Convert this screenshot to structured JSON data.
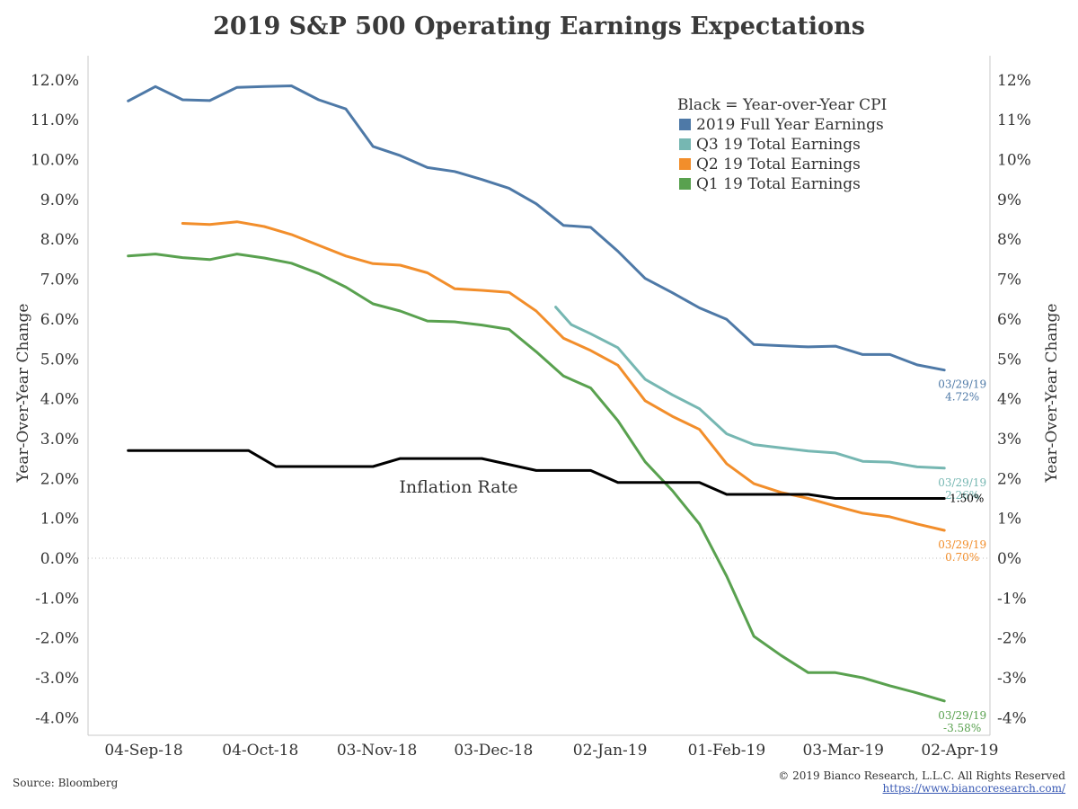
{
  "chart_data": {
    "type": "line",
    "title": "2019 S&P 500 Operating Earnings Expectations",
    "ylabel": "Year-Over-Year Change",
    "y2label": "Year-Over-Year Change",
    "ylim": [
      -4.5,
      12.6
    ],
    "grid": false,
    "legend_position": "top-right",
    "legend_header": "Black = Year-over-Year CPI",
    "x_ticks": [
      {
        "label": "04-Sep-18",
        "value": "2018-09-04"
      },
      {
        "label": "04-Oct-18",
        "value": "2018-10-04"
      },
      {
        "label": "03-Nov-18",
        "value": "2018-11-03"
      },
      {
        "label": "03-Dec-18",
        "value": "2018-12-03"
      },
      {
        "label": "02-Jan-19",
        "value": "2019-01-02"
      },
      {
        "label": "01-Feb-19",
        "value": "2019-02-01"
      },
      {
        "label": "03-Mar-19",
        "value": "2019-03-03"
      },
      {
        "label": "02-Apr-19",
        "value": "2019-04-02"
      }
    ],
    "y_ticks_left": [
      "12.0%",
      "11.0%",
      "10.0%",
      "9.0%",
      "8.0%",
      "7.0%",
      "6.0%",
      "5.0%",
      "4.0%",
      "3.0%",
      "2.0%",
      "1.0%",
      "0.0%",
      "-1.0%",
      "-2.0%",
      "-3.0%",
      "-4.0%"
    ],
    "y_ticks_right": [
      "12%",
      "11%",
      "10%",
      "9%",
      "8%",
      "7%",
      "6%",
      "5%",
      "4%",
      "3%",
      "2%",
      "1%",
      "0%",
      "-1%",
      "-2%",
      "-3%",
      "-4%"
    ],
    "y_tick_values": [
      12,
      11,
      10,
      9,
      8,
      7,
      6,
      5,
      4,
      3,
      2,
      1,
      0,
      -1,
      -2,
      -3,
      -4
    ],
    "series": [
      {
        "name": "2019 Full Year Earnings",
        "color": "#4e79a7",
        "end_label": [
          "03/29/19",
          "4.72%"
        ],
        "points": [
          [
            "2018-08-31",
            11.47
          ],
          [
            "2018-09-07",
            11.83
          ],
          [
            "2018-09-14",
            11.5
          ],
          [
            "2018-09-21",
            11.48
          ],
          [
            "2018-09-28",
            11.81
          ],
          [
            "2018-10-05",
            11.83
          ],
          [
            "2018-10-12",
            11.85
          ],
          [
            "2018-10-19",
            11.5
          ],
          [
            "2018-10-26",
            11.27
          ],
          [
            "2018-11-02",
            10.33
          ],
          [
            "2018-11-09",
            10.1
          ],
          [
            "2018-11-16",
            9.8
          ],
          [
            "2018-11-23",
            9.7
          ],
          [
            "2018-11-30",
            9.5
          ],
          [
            "2018-12-07",
            9.28
          ],
          [
            "2018-12-14",
            8.89
          ],
          [
            "2018-12-21",
            8.35
          ],
          [
            "2018-12-28",
            8.3
          ],
          [
            "2019-01-04",
            7.7
          ],
          [
            "2019-01-11",
            7.02
          ],
          [
            "2019-01-18",
            6.66
          ],
          [
            "2019-01-25",
            6.28
          ],
          [
            "2019-02-01",
            5.99
          ],
          [
            "2019-02-08",
            5.36
          ],
          [
            "2019-02-15",
            5.33
          ],
          [
            "2019-02-22",
            5.3
          ],
          [
            "2019-03-01",
            5.32
          ],
          [
            "2019-03-08",
            5.11
          ],
          [
            "2019-03-15",
            5.11
          ],
          [
            "2019-03-22",
            4.85
          ],
          [
            "2019-03-29",
            4.72
          ]
        ]
      },
      {
        "name": "Q3 19 Total Earnings",
        "color": "#76b7b2",
        "end_label": [
          "03/29/19",
          "2.26%"
        ],
        "points": [
          [
            "2018-12-19",
            6.3
          ],
          [
            "2018-12-23",
            5.86
          ],
          [
            "2018-12-28",
            5.63
          ],
          [
            "2019-01-04",
            5.28
          ],
          [
            "2019-01-11",
            4.49
          ],
          [
            "2019-01-18",
            4.1
          ],
          [
            "2019-01-25",
            3.75
          ],
          [
            "2019-02-01",
            3.12
          ],
          [
            "2019-02-08",
            2.85
          ],
          [
            "2019-02-15",
            2.77
          ],
          [
            "2019-02-22",
            2.69
          ],
          [
            "2019-03-01",
            2.64
          ],
          [
            "2019-03-08",
            2.43
          ],
          [
            "2019-03-15",
            2.41
          ],
          [
            "2019-03-22",
            2.29
          ],
          [
            "2019-03-29",
            2.26
          ]
        ]
      },
      {
        "name": "Q2 19 Total Earnings",
        "color": "#f28e2b",
        "end_label": [
          "03/29/19",
          "0.70%"
        ],
        "points": [
          [
            "2018-09-14",
            8.4
          ],
          [
            "2018-09-21",
            8.37
          ],
          [
            "2018-09-28",
            8.44
          ],
          [
            "2018-10-05",
            8.32
          ],
          [
            "2018-10-12",
            8.12
          ],
          [
            "2018-10-19",
            7.85
          ],
          [
            "2018-10-26",
            7.58
          ],
          [
            "2018-11-02",
            7.39
          ],
          [
            "2018-11-09",
            7.35
          ],
          [
            "2018-11-16",
            7.16
          ],
          [
            "2018-11-23",
            6.76
          ],
          [
            "2018-11-30",
            6.72
          ],
          [
            "2018-12-07",
            6.67
          ],
          [
            "2018-12-14",
            6.2
          ],
          [
            "2018-12-21",
            5.52
          ],
          [
            "2018-12-28",
            5.21
          ],
          [
            "2019-01-04",
            4.84
          ],
          [
            "2019-01-11",
            3.95
          ],
          [
            "2019-01-18",
            3.56
          ],
          [
            "2019-01-25",
            3.23
          ],
          [
            "2019-02-01",
            2.37
          ],
          [
            "2019-02-08",
            1.87
          ],
          [
            "2019-02-15",
            1.65
          ],
          [
            "2019-02-22",
            1.5
          ],
          [
            "2019-03-01",
            1.31
          ],
          [
            "2019-03-08",
            1.13
          ],
          [
            "2019-03-15",
            1.04
          ],
          [
            "2019-03-22",
            0.86
          ],
          [
            "2019-03-29",
            0.7
          ]
        ]
      },
      {
        "name": "Q1 19 Total Earnings",
        "color": "#59a14f",
        "end_label": [
          "03/29/19",
          "-3.58%"
        ],
        "points": [
          [
            "2018-08-31",
            7.58
          ],
          [
            "2018-09-07",
            7.63
          ],
          [
            "2018-09-14",
            7.54
          ],
          [
            "2018-09-21",
            7.49
          ],
          [
            "2018-09-28",
            7.63
          ],
          [
            "2018-10-05",
            7.53
          ],
          [
            "2018-10-12",
            7.4
          ],
          [
            "2018-10-19",
            7.14
          ],
          [
            "2018-10-26",
            6.8
          ],
          [
            "2018-11-02",
            6.38
          ],
          [
            "2018-11-09",
            6.2
          ],
          [
            "2018-11-16",
            5.95
          ],
          [
            "2018-11-23",
            5.93
          ],
          [
            "2018-11-30",
            5.85
          ],
          [
            "2018-12-07",
            5.74
          ],
          [
            "2018-12-14",
            5.18
          ],
          [
            "2018-12-21",
            4.57
          ],
          [
            "2018-12-28",
            4.27
          ],
          [
            "2019-01-04",
            3.45
          ],
          [
            "2019-01-11",
            2.42
          ],
          [
            "2019-01-18",
            1.7
          ],
          [
            "2019-01-25",
            0.86
          ],
          [
            "2019-02-01",
            -0.45
          ],
          [
            "2019-02-08",
            -1.96
          ],
          [
            "2019-02-15",
            -2.44
          ],
          [
            "2019-02-22",
            -2.87
          ],
          [
            "2019-03-01",
            -2.87
          ],
          [
            "2019-03-08",
            -3.0
          ],
          [
            "2019-03-15",
            -3.2
          ],
          [
            "2019-03-22",
            -3.38
          ],
          [
            "2019-03-29",
            -3.58
          ]
        ]
      },
      {
        "name": "Inflation Rate",
        "color": "#000000",
        "in_legend": false,
        "end_label": [
          "",
          "1.50%"
        ],
        "points": [
          [
            "2018-08-31",
            2.7
          ],
          [
            "2018-10-01",
            2.7
          ],
          [
            "2018-10-08",
            2.3
          ],
          [
            "2018-11-02",
            2.3
          ],
          [
            "2018-11-09",
            2.5
          ],
          [
            "2018-11-30",
            2.5
          ],
          [
            "2018-12-14",
            2.2
          ],
          [
            "2018-12-28",
            2.2
          ],
          [
            "2019-01-04",
            1.9
          ],
          [
            "2019-01-25",
            1.9
          ],
          [
            "2019-02-01",
            1.6
          ],
          [
            "2019-02-22",
            1.6
          ],
          [
            "2019-03-01",
            1.5
          ],
          [
            "2019-03-29",
            1.5
          ]
        ]
      }
    ],
    "annotations": [
      {
        "text": "Inflation Rate",
        "x": "2018-11-24",
        "y": 1.65
      }
    ]
  },
  "footer": {
    "source": "Source: Bloomberg",
    "copyright": "© 2019 Bianco Research, L.L.C. All Rights Reserved",
    "url": "https://www.biancoresearch.com/"
  }
}
